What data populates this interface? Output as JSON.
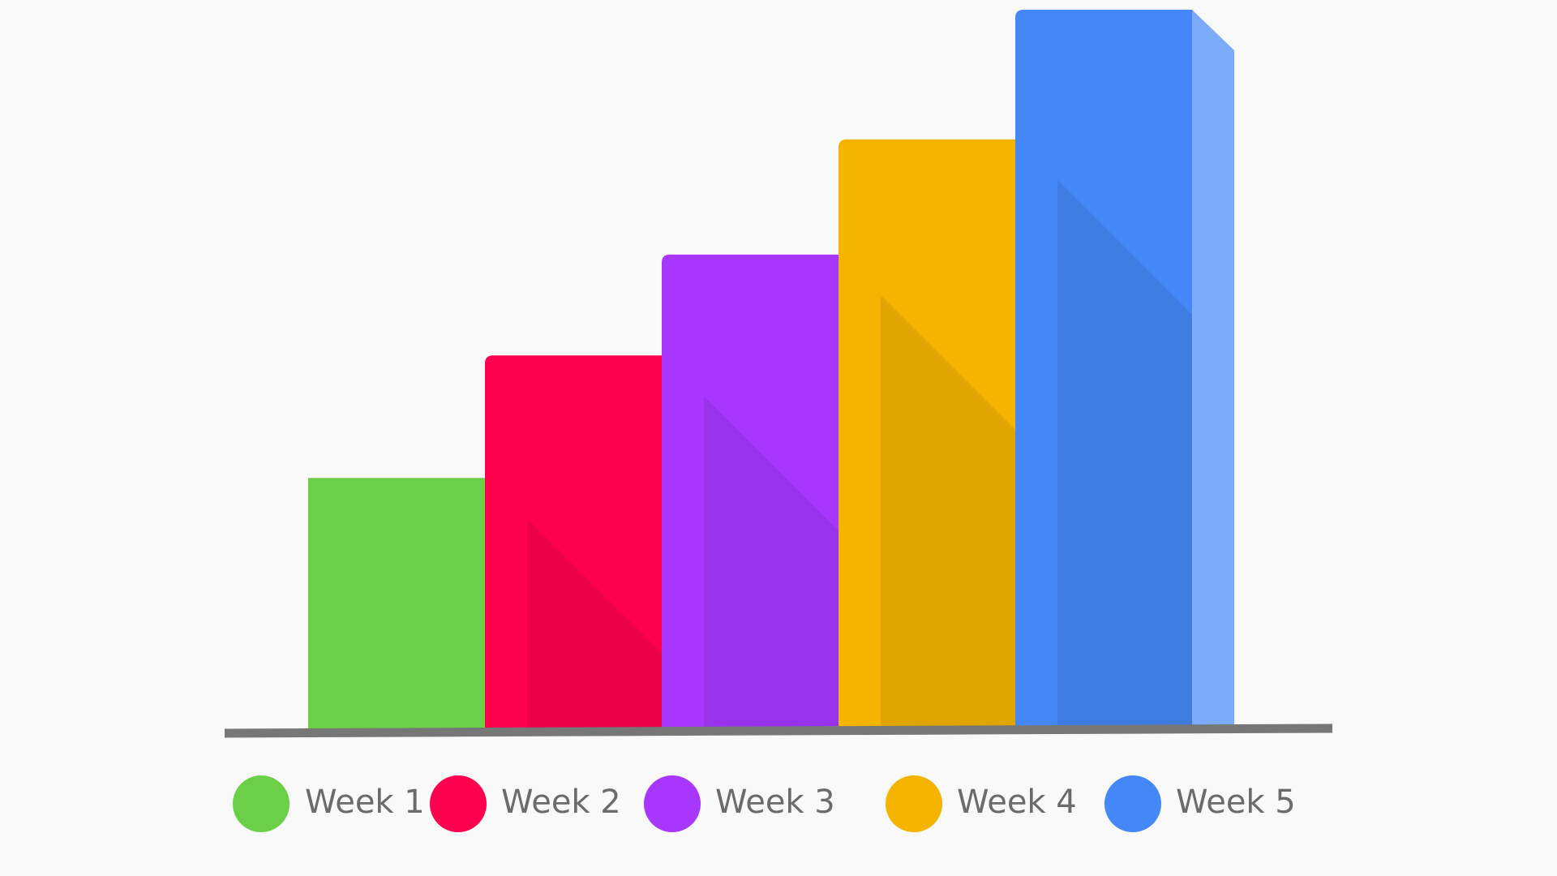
{
  "chart_data": {
    "type": "bar",
    "categories": [
      "Week 1",
      "Week 2",
      "Week 3",
      "Week 4",
      "Week 5"
    ],
    "values": [
      35,
      52,
      66,
      82,
      100
    ],
    "colors": [
      "#6ccf48",
      "#ff004f",
      "#a737ff",
      "#f4b400",
      "#4487f6"
    ]
  }
}
